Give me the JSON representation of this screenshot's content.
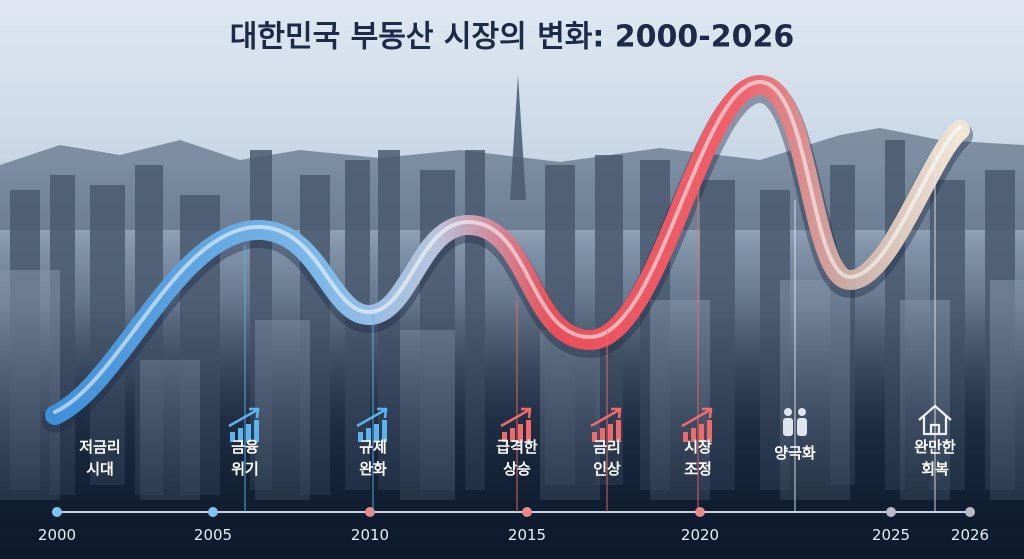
{
  "title": "대한민국 부동산 시장의 변화: 2000-2026",
  "timeline": {
    "ticks": [
      2000,
      2005,
      2010,
      2015,
      2020,
      2025,
      2026
    ]
  },
  "events": [
    {
      "label": [
        "저금리",
        "시대"
      ]
    },
    {
      "label": [
        "금융",
        "위기"
      ]
    },
    {
      "label": [
        "규제",
        "완화"
      ]
    },
    {
      "label": [
        "급격한",
        "상승"
      ]
    },
    {
      "label": [
        "금리",
        "인상"
      ]
    },
    {
      "label": [
        "시장",
        "조정"
      ]
    },
    {
      "label": [
        "양극화"
      ]
    },
    {
      "label": [
        "완만한",
        "회복"
      ]
    }
  ]
}
